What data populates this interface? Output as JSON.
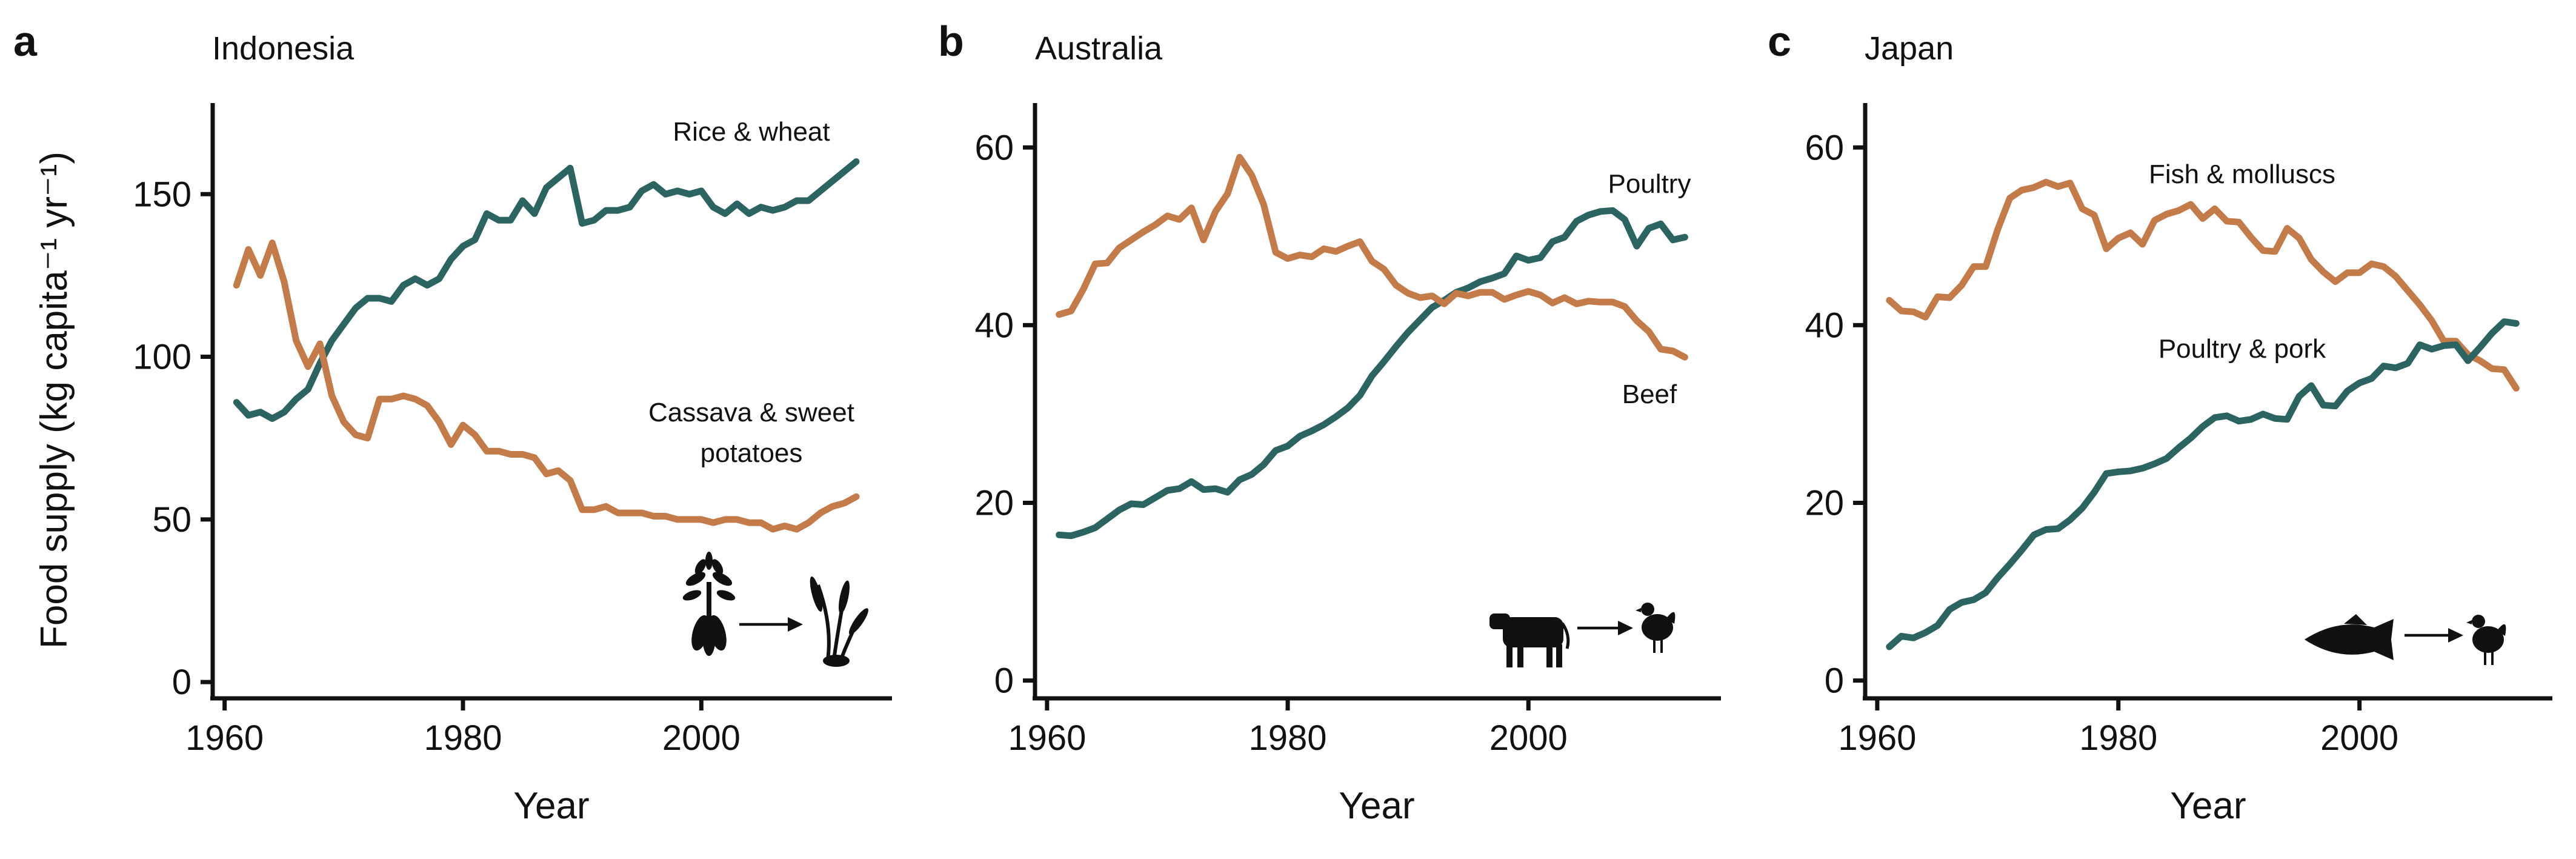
{
  "figure": {
    "y_axis_title": "Food supply (kg capita⁻¹ yr⁻¹)"
  },
  "colors": {
    "orange": "#c47b4a",
    "teal": "#2b6461"
  },
  "chart_data": [
    {
      "type": "line",
      "panel_letter": "a",
      "title": "Indonesia",
      "xlabel": "Year",
      "ylabel": "Food supply (kg capita⁻¹ yr⁻¹)",
      "xlim": [
        1959,
        2016
      ],
      "ylim": [
        -5,
        178
      ],
      "xticks": [
        1960,
        1980,
        2000
      ],
      "yticks": [
        0,
        50,
        100,
        150
      ],
      "x": [
        1961,
        1962,
        1963,
        1964,
        1965,
        1966,
        1967,
        1968,
        1969,
        1970,
        1971,
        1972,
        1973,
        1974,
        1975,
        1976,
        1977,
        1978,
        1979,
        1980,
        1981,
        1982,
        1983,
        1984,
        1985,
        1986,
        1987,
        1988,
        1989,
        1990,
        1991,
        1992,
        1993,
        1994,
        1995,
        1996,
        1997,
        1998,
        1999,
        2000,
        2001,
        2002,
        2003,
        2004,
        2005,
        2006,
        2007,
        2008,
        2009,
        2010,
        2011,
        2012,
        2013
      ],
      "series": [
        {
          "name": "Rice & wheat",
          "color": "#2b6461",
          "values": [
            86,
            82,
            83,
            81,
            83,
            87,
            90,
            98,
            105,
            110,
            115,
            118,
            118,
            117,
            122,
            124,
            122,
            124,
            130,
            134,
            136,
            144,
            142,
            142,
            148,
            144,
            152,
            155,
            158,
            141,
            142,
            145,
            145,
            146,
            151,
            153,
            150,
            151,
            150,
            151,
            146,
            144,
            147,
            144,
            146,
            145,
            146,
            148,
            148,
            151,
            154,
            157,
            160
          ]
        },
        {
          "name": "Cassava & sweet potatoes",
          "color": "#c47b4a",
          "values": [
            122,
            133,
            125,
            135,
            123,
            105,
            97,
            104,
            88,
            80,
            76,
            75,
            87,
            87,
            88,
            87,
            85,
            80,
            73,
            79,
            76,
            71,
            71,
            70,
            70,
            69,
            64,
            65,
            62,
            53,
            53,
            54,
            52,
            52,
            52,
            51,
            51,
            50,
            50,
            50,
            49,
            50,
            50,
            49,
            49,
            47,
            48,
            47,
            49,
            52,
            54,
            55,
            57
          ]
        }
      ],
      "label_ricewheat": "Rice & wheat",
      "label_cassava_1": "Cassava & sweet",
      "label_cassava_2": "potatoes",
      "icons": [
        "cassava-plant-icon",
        "wheat-icon"
      ]
    },
    {
      "type": "line",
      "panel_letter": "b",
      "title": "Australia",
      "xlabel": "Year",
      "ylabel": "",
      "xlim": [
        1959,
        2016
      ],
      "ylim": [
        -2,
        65
      ],
      "xticks": [
        1960,
        1980,
        2000
      ],
      "yticks": [
        0,
        20,
        40,
        60
      ],
      "x": [
        1961,
        1962,
        1963,
        1964,
        1965,
        1966,
        1967,
        1968,
        1969,
        1970,
        1971,
        1972,
        1973,
        1974,
        1975,
        1976,
        1977,
        1978,
        1979,
        1980,
        1981,
        1982,
        1983,
        1984,
        1985,
        1986,
        1987,
        1988,
        1989,
        1990,
        1991,
        1992,
        1993,
        1994,
        1995,
        1996,
        1997,
        1998,
        1999,
        2000,
        2001,
        2002,
        2003,
        2004,
        2005,
        2006,
        2007,
        2008,
        2009,
        2010,
        2011,
        2012,
        2013
      ],
      "series": [
        {
          "name": "Poultry",
          "color": "#2b6461",
          "values": [
            16.4,
            16.3,
            16.7,
            17.2,
            18.2,
            19.2,
            19.9,
            19.8,
            20.6,
            21.4,
            21.6,
            22.4,
            21.5,
            21.6,
            21.2,
            22.6,
            23.2,
            24.3,
            25.9,
            26.4,
            27.5,
            28.1,
            28.8,
            29.7,
            30.7,
            32.1,
            34.3,
            35.9,
            37.6,
            39.2,
            40.6,
            42.0,
            42.8,
            43.7,
            44.2,
            44.9,
            45.3,
            45.8,
            47.8,
            47.3,
            47.6,
            49.4,
            49.9,
            51.7,
            52.4,
            52.8,
            52.9,
            51.9,
            48.9,
            50.9,
            51.4,
            49.6,
            49.9
          ]
        },
        {
          "name": "Beef",
          "color": "#c47b4a",
          "values": [
            41.2,
            41.6,
            44.0,
            46.9,
            47.0,
            48.7,
            49.6,
            50.5,
            51.3,
            52.3,
            51.9,
            53.2,
            49.6,
            52.8,
            54.8,
            58.9,
            56.9,
            53.6,
            48.2,
            47.5,
            47.9,
            47.7,
            48.6,
            48.3,
            48.9,
            49.4,
            47.2,
            46.3,
            44.5,
            43.6,
            43.1,
            43.3,
            42.4,
            43.6,
            43.3,
            43.7,
            43.7,
            42.9,
            43.4,
            43.8,
            43.4,
            42.5,
            43.1,
            42.4,
            42.7,
            42.6,
            42.6,
            42.1,
            40.5,
            39.3,
            37.3,
            37.1,
            36.4
          ]
        }
      ],
      "label_poultry": "Poultry",
      "label_beef": "Beef",
      "icons": [
        "cow-icon",
        "chicken-icon"
      ]
    },
    {
      "type": "line",
      "panel_letter": "c",
      "title": "Japan",
      "xlabel": "Year",
      "ylabel": "",
      "xlim": [
        1959,
        2016
      ],
      "ylim": [
        -2,
        65
      ],
      "xticks": [
        1960,
        1980,
        2000
      ],
      "yticks": [
        0,
        20,
        40,
        60
      ],
      "x": [
        1961,
        1962,
        1963,
        1964,
        1965,
        1966,
        1967,
        1968,
        1969,
        1970,
        1971,
        1972,
        1973,
        1974,
        1975,
        1976,
        1977,
        1978,
        1979,
        1980,
        1981,
        1982,
        1983,
        1984,
        1985,
        1986,
        1987,
        1988,
        1989,
        1990,
        1991,
        1992,
        1993,
        1994,
        1995,
        1996,
        1997,
        1998,
        1999,
        2000,
        2001,
        2002,
        2003,
        2004,
        2005,
        2006,
        2007,
        2008,
        2009,
        2010,
        2011,
        2012,
        2013
      ],
      "series": [
        {
          "name": "Fish & molluscs",
          "color": "#c47b4a",
          "values": [
            42.8,
            41.6,
            41.5,
            40.9,
            43.2,
            43.1,
            44.5,
            46.6,
            46.6,
            50.8,
            54.3,
            55.2,
            55.5,
            56.1,
            55.6,
            56.0,
            53.1,
            52.4,
            48.6,
            49.8,
            50.4,
            49.1,
            51.8,
            52.5,
            52.9,
            53.6,
            52.0,
            53.1,
            51.7,
            51.6,
            49.9,
            48.4,
            48.3,
            50.9,
            49.8,
            47.4,
            46.0,
            44.9,
            45.9,
            45.9,
            46.9,
            46.6,
            45.5,
            43.9,
            42.3,
            40.5,
            38.2,
            38.2,
            36.7,
            36.0,
            35.1,
            35.0,
            32.9
          ]
        },
        {
          "name": "Poultry & pork",
          "color": "#2b6461",
          "values": [
            3.8,
            5.0,
            4.8,
            5.4,
            6.2,
            8.0,
            8.8,
            9.1,
            9.9,
            11.6,
            13.1,
            14.7,
            16.4,
            17.0,
            17.1,
            18.1,
            19.4,
            21.2,
            23.3,
            23.5,
            23.6,
            23.9,
            24.4,
            25.0,
            26.2,
            27.3,
            28.6,
            29.6,
            29.8,
            29.2,
            29.4,
            30.0,
            29.5,
            29.4,
            32.0,
            33.2,
            31.0,
            30.9,
            32.6,
            33.5,
            34.0,
            35.4,
            35.2,
            35.7,
            37.8,
            37.3,
            37.7,
            37.8,
            36.0,
            37.5,
            39.1,
            40.4,
            40.2
          ]
        }
      ],
      "label_fish": "Fish & molluscs",
      "label_poultrypork": "Poultry & pork",
      "icons": [
        "fish-icon",
        "chicken-icon"
      ]
    }
  ]
}
